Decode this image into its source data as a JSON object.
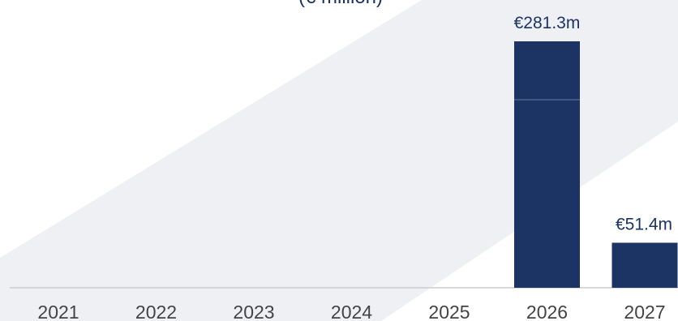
{
  "chart_data": {
    "type": "bar",
    "subtitle": "(€ million)",
    "categories": [
      "2021",
      "2022",
      "2023",
      "2024",
      "2025",
      "2026",
      "2027"
    ],
    "series": [
      {
        "values": [
          0,
          0,
          0,
          0,
          0,
          281.3,
          51.4
        ],
        "color": "#1b3464"
      }
    ],
    "data_labels": [
      "",
      "",
      "",
      "",
      "",
      "€281.3m",
      "€51.4m"
    ],
    "ylim": [
      0,
      281.3
    ],
    "grid": false,
    "legend": "none"
  },
  "colors": {
    "bar": "#1b3464",
    "bar_segment_line": "#ffffff",
    "label_text": "#1b3464",
    "tick_text": "#444444",
    "baseline": "#cccccc",
    "background_band": "#eef0f3"
  }
}
